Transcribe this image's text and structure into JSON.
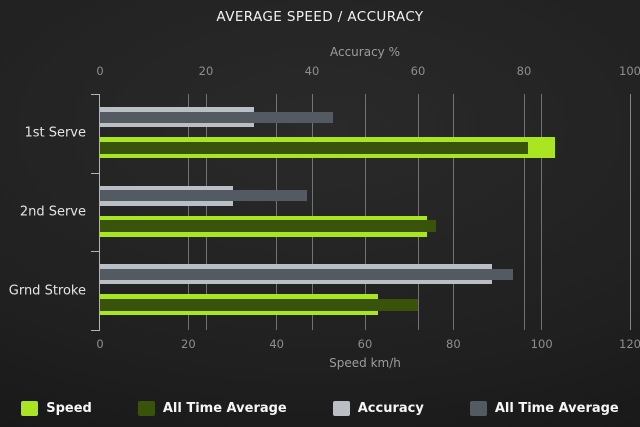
{
  "title": "AVERAGE SPEED / ACCURACY",
  "colors": {
    "background": "#1f1f1f",
    "speed": "#a9e520",
    "speed_all_time": "#3a530b",
    "accuracy": "#b9bfc5",
    "accuracy_all_time": "#545a62",
    "gridline": "#8d8d8d",
    "axis_line": "#b3b3b3",
    "title_text": "#f2f2f2",
    "tick_text": "#8e8e8e"
  },
  "chart_data": {
    "type": "bar",
    "orientation": "horizontal",
    "title": "AVERAGE SPEED / ACCURACY",
    "categories": [
      "1st Serve",
      "2nd Serve",
      "Grnd Stroke"
    ],
    "series": [
      {
        "name": "Speed",
        "axis": "speed",
        "color": "#a9e520",
        "values": [
          103,
          74,
          63
        ]
      },
      {
        "name": "All Time Average",
        "axis": "speed",
        "color": "#3a530b",
        "values": [
          97,
          76,
          72
        ]
      },
      {
        "name": "Accuracy",
        "axis": "accuracy",
        "color": "#b9bfc5",
        "values": [
          29,
          25,
          74
        ]
      },
      {
        "name": "All Time Average",
        "axis": "accuracy",
        "color": "#545a62",
        "values": [
          44,
          39,
          78
        ]
      }
    ],
    "axes": {
      "top": {
        "label": "Accuracy %",
        "min": 0,
        "max": 100,
        "ticks": [
          0,
          20,
          40,
          60,
          80,
          100
        ]
      },
      "bottom": {
        "label": "Speed km/h",
        "min": 0,
        "max": 120,
        "ticks": [
          0,
          20,
          40,
          60,
          80,
          100,
          120
        ]
      }
    },
    "grid": true,
    "legend_position": "bottom",
    "legend": [
      {
        "label": "Speed",
        "color": "#a9e520"
      },
      {
        "label": "All Time Average",
        "color": "#3a530b"
      },
      {
        "label": "Accuracy",
        "color": "#b9bfc5"
      },
      {
        "label": "All Time Average",
        "color": "#545a62"
      }
    ]
  }
}
